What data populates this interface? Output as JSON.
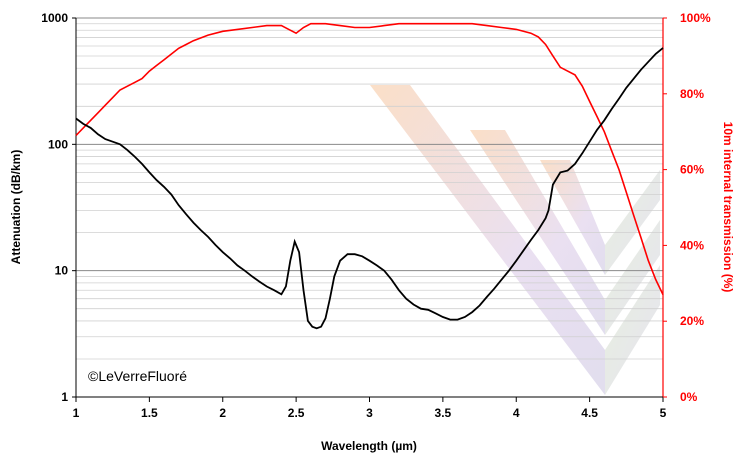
{
  "chart_data": {
    "type": "line",
    "xlabel": "Wavelength (µm)",
    "ylabel": "Attenuation (dB/km)",
    "y2label": "10m internal transmission (%)",
    "xlim": [
      1,
      5
    ],
    "ylim": [
      1,
      1000
    ],
    "yscale": "log",
    "y2lim": [
      0,
      100
    ],
    "x_ticks": [
      "1",
      "1.5",
      "2",
      "2.5",
      "3",
      "3.5",
      "4",
      "4.5",
      "5"
    ],
    "y_ticks": [
      "1",
      "10",
      "100",
      "1000"
    ],
    "y2_ticks": [
      "0%",
      "20%",
      "40%",
      "60%",
      "80%",
      "100%"
    ],
    "grid": true,
    "annotation": "©LeVerreFluoré",
    "colors": {
      "attenuation": "#000000",
      "transmission": "#ff0000",
      "grid": "#c8c8c8"
    },
    "series": [
      {
        "axis": "left",
        "color": "#000000",
        "x": [
          1.0,
          1.05,
          1.1,
          1.15,
          1.2,
          1.25,
          1.3,
          1.35,
          1.4,
          1.45,
          1.5,
          1.55,
          1.6,
          1.65,
          1.7,
          1.75,
          1.8,
          1.85,
          1.9,
          1.95,
          2.0,
          2.05,
          2.1,
          2.15,
          2.2,
          2.25,
          2.3,
          2.35,
          2.4,
          2.43,
          2.46,
          2.49,
          2.52,
          2.55,
          2.58,
          2.61,
          2.64,
          2.67,
          2.7,
          2.73,
          2.76,
          2.8,
          2.85,
          2.9,
          2.95,
          3.0,
          3.05,
          3.1,
          3.15,
          3.2,
          3.25,
          3.3,
          3.35,
          3.4,
          3.45,
          3.5,
          3.55,
          3.6,
          3.65,
          3.7,
          3.75,
          3.8,
          3.85,
          3.9,
          3.95,
          4.0,
          4.05,
          4.1,
          4.15,
          4.2,
          4.22,
          4.25,
          4.3,
          4.35,
          4.4,
          4.45,
          4.5,
          4.55,
          4.6,
          4.65,
          4.7,
          4.75,
          4.8,
          4.85,
          4.9,
          4.95,
          5.0
        ],
        "values": [
          160,
          145,
          135,
          120,
          110,
          105,
          100,
          90,
          80,
          70,
          60,
          52,
          46,
          40,
          33,
          28,
          24,
          21,
          18.5,
          16,
          14,
          12.5,
          11,
          10,
          9,
          8.2,
          7.5,
          7,
          6.5,
          7.5,
          12,
          17,
          14,
          7,
          4,
          3.6,
          3.5,
          3.6,
          4.2,
          6,
          9,
          12,
          13.5,
          13.5,
          13,
          12,
          11,
          10,
          8.5,
          7,
          6,
          5.4,
          5,
          4.9,
          4.6,
          4.3,
          4.1,
          4.1,
          4.3,
          4.7,
          5.3,
          6.2,
          7.2,
          8.5,
          10,
          12,
          14.5,
          17.5,
          21,
          26,
          30,
          48,
          60,
          62,
          70,
          85,
          105,
          130,
          155,
          190,
          230,
          280,
          330,
          390,
          450,
          520,
          580
        ]
      },
      {
        "axis": "right",
        "color": "#ff0000",
        "x": [
          1.0,
          1.05,
          1.1,
          1.15,
          1.2,
          1.25,
          1.3,
          1.35,
          1.4,
          1.45,
          1.5,
          1.55,
          1.6,
          1.65,
          1.7,
          1.75,
          1.8,
          1.9,
          2.0,
          2.1,
          2.2,
          2.3,
          2.4,
          2.45,
          2.5,
          2.55,
          2.6,
          2.7,
          2.8,
          2.9,
          3.0,
          3.1,
          3.2,
          3.3,
          3.4,
          3.5,
          3.6,
          3.7,
          3.8,
          3.9,
          4.0,
          4.1,
          4.15,
          4.2,
          4.25,
          4.3,
          4.35,
          4.4,
          4.45,
          4.5,
          4.55,
          4.6,
          4.65,
          4.7,
          4.75,
          4.8,
          4.85,
          4.9,
          4.95,
          5.0
        ],
        "values": [
          69,
          71,
          73,
          75,
          77,
          79,
          81,
          82,
          83,
          84,
          86,
          87.5,
          89,
          90.5,
          92,
          93,
          94,
          95.5,
          96.5,
          97,
          97.5,
          98,
          98,
          97,
          96,
          97.5,
          98.5,
          98.5,
          98,
          97.5,
          97.5,
          98,
          98.5,
          98.5,
          98.5,
          98.5,
          98.5,
          98.5,
          98,
          97.5,
          97,
          96,
          95,
          93,
          90,
          87,
          86,
          85,
          82,
          78,
          74,
          70,
          65,
          60,
          54,
          48,
          42,
          36,
          31,
          27
        ]
      }
    ]
  }
}
